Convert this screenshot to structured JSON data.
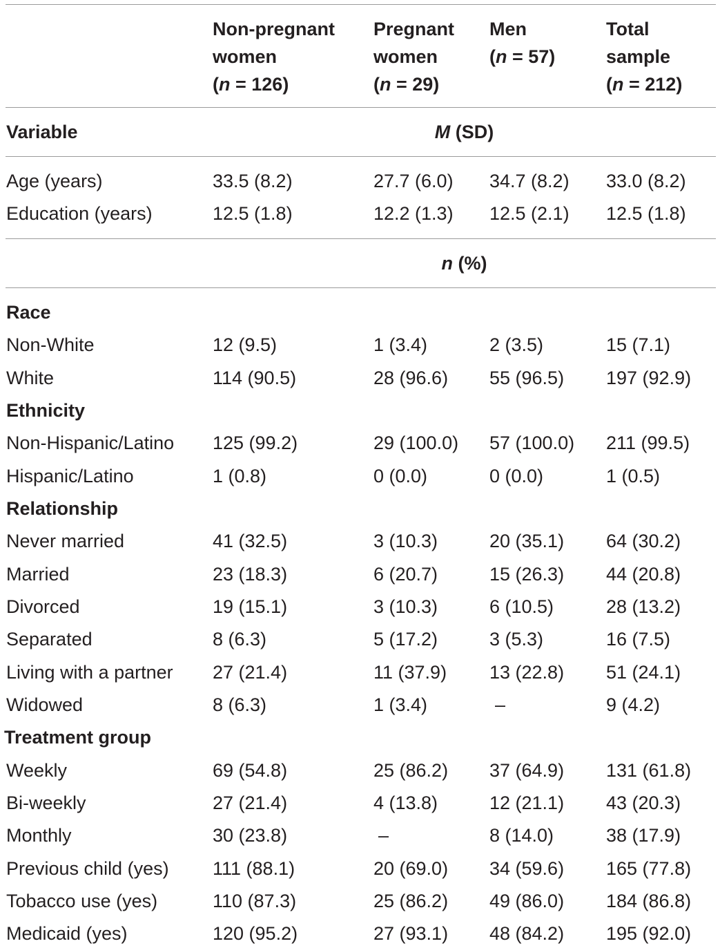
{
  "header": {
    "columns": [
      {
        "lines": [
          "Non-pregnant",
          "women",
          "(n = 126)"
        ],
        "n_label": "n",
        "n_value": " = 126)"
      },
      {
        "lines": [
          "Pregnant",
          "women",
          "(n = 29)"
        ],
        "n_label": "n",
        "n_value": " = 29)"
      },
      {
        "lines": [
          "Men",
          "(n = 57)"
        ],
        "n_label": "n",
        "n_value": " = 57)"
      },
      {
        "lines": [
          "Total",
          "sample",
          "(n = 212)"
        ],
        "n_label": "n",
        "n_value": " = 212)"
      }
    ],
    "col1_line1": "Non-pregnant",
    "col1_line2": "women",
    "col2_line1": "Pregnant",
    "col2_line2": "women",
    "col3_line1": "Men",
    "col4_line1": "Total",
    "col4_line2": "sample",
    "n_symbol": "n",
    "col1_n": " = 126)",
    "col2_n": " = 29)",
    "col3_n": " = 57)",
    "col4_n": " = 212)",
    "paren_open": "("
  },
  "variable_label": "Variable",
  "msd_label": {
    "m": "M",
    "rest": " (SD)"
  },
  "npct_label": {
    "n": "n",
    "rest": " (%)"
  },
  "continuous_rows": [
    {
      "label": "Age (years)",
      "values": [
        "33.5 (8.2)",
        "27.7 (6.0)",
        "34.7 (8.2)",
        "33.0 (8.2)"
      ]
    },
    {
      "label": "Education (years)",
      "values": [
        "12.5 (1.8)",
        "12.2 (1.3)",
        "12.5 (2.1)",
        "12.5 (1.8)"
      ]
    }
  ],
  "sections": {
    "race": {
      "title": "Race",
      "rows": [
        {
          "label": "Non-White",
          "values": [
            "12 (9.5)",
            "1 (3.4)",
            "2 (3.5)",
            "15 (7.1)"
          ]
        },
        {
          "label": "White",
          "values": [
            "114 (90.5)",
            "28 (96.6)",
            "55 (96.5)",
            "197 (92.9)"
          ]
        }
      ]
    },
    "ethnicity": {
      "title": "Ethnicity",
      "rows": [
        {
          "label": "Non-Hispanic/Latino",
          "values": [
            "125 (99.2)",
            "29 (100.0)",
            "57 (100.0)",
            "211 (99.5)"
          ]
        },
        {
          "label": "Hispanic/Latino",
          "values": [
            "1 (0.8)",
            "0 (0.0)",
            "0 (0.0)",
            "1 (0.5)"
          ]
        }
      ]
    },
    "relationship": {
      "title": "Relationship",
      "rows": [
        {
          "label": "Never married",
          "values": [
            "41 (32.5)",
            "3 (10.3)",
            "20 (35.1)",
            "64 (30.2)"
          ]
        },
        {
          "label": "Married",
          "values": [
            "23 (18.3)",
            "6 (20.7)",
            "15 (26.3)",
            "44 (20.8)"
          ]
        },
        {
          "label": "Divorced",
          "values": [
            "19 (15.1)",
            "3 (10.3)",
            "6 (10.5)",
            "28 (13.2)"
          ]
        },
        {
          "label": "Separated",
          "values": [
            "8 (6.3)",
            "5 (17.2)",
            "3 (5.3)",
            "16 (7.5)"
          ]
        },
        {
          "label": "Living with a partner",
          "values": [
            "27 (21.4)",
            "11 (37.9)",
            "13 (22.8)",
            "51 (24.1)"
          ]
        },
        {
          "label": "Widowed",
          "values": [
            "8 (6.3)",
            "1 (3.4)",
            "–",
            "9 (4.2)"
          ]
        }
      ]
    },
    "treatment": {
      "title": "Treatment group",
      "rows": [
        {
          "label": "Weekly",
          "values": [
            "69 (54.8)",
            "25 (86.2)",
            "37 (64.9)",
            "131 (61.8)"
          ]
        },
        {
          "label": "Bi-weekly",
          "values": [
            "27 (21.4)",
            "4 (13.8)",
            "12 (21.1)",
            "43 (20.3)"
          ]
        },
        {
          "label": "Monthly",
          "values": [
            "30 (23.8)",
            "–",
            "8 (14.0)",
            "38 (17.9)"
          ]
        },
        {
          "label": "Previous child (yes)",
          "values": [
            "111 (88.1)",
            "20 (69.0)",
            "34 (59.6)",
            "165 (77.8)"
          ]
        },
        {
          "label": "Tobacco use (yes)",
          "values": [
            "110 (87.3)",
            "25 (86.2)",
            "49 (86.0)",
            "184 (86.8)"
          ]
        },
        {
          "label": "Medicaid (yes)",
          "values": [
            "120 (95.2)",
            "27 (93.1)",
            "48 (84.2)",
            "195 (92.0)"
          ]
        }
      ]
    }
  }
}
